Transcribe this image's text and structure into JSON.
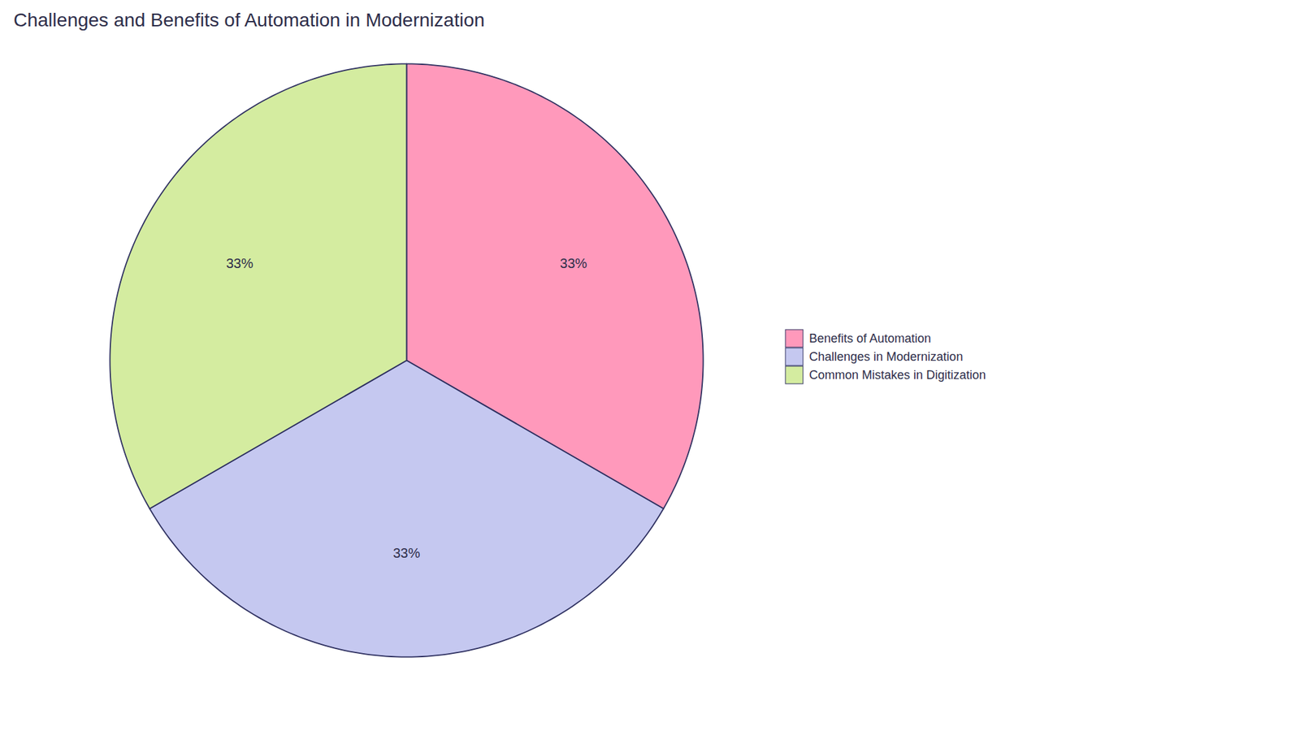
{
  "chart_data": {
    "type": "pie",
    "title": "Challenges and Benefits of Automation in Modernization",
    "categories": [
      "Benefits of Automation",
      "Challenges in Modernization",
      "Common Mistakes in Digitization"
    ],
    "values": [
      33.33,
      33.34,
      33.33
    ],
    "value_labels": [
      "33%",
      "33%",
      "33%"
    ],
    "colors": [
      "#FF99BB",
      "#C5C8F0",
      "#D4ECA0"
    ],
    "data_labels": true,
    "legend": "right"
  }
}
